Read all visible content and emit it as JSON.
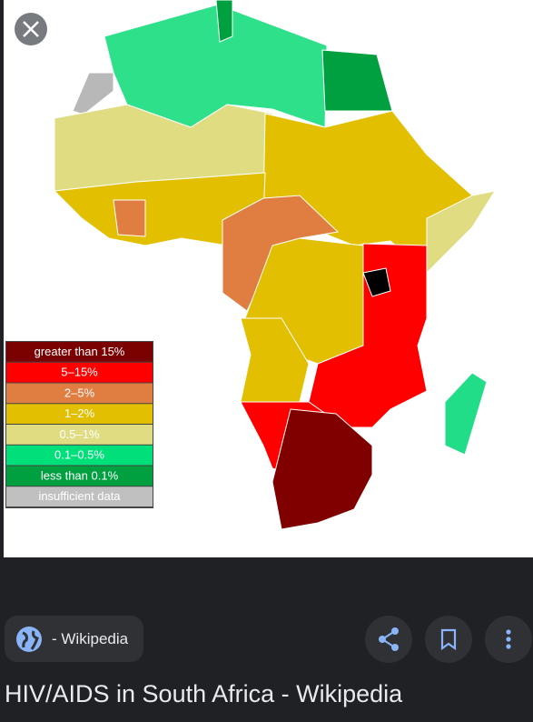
{
  "image": {
    "legend": [
      {
        "label": "greater than 15%",
        "color": "#7b0000"
      },
      {
        "label": "5–15%",
        "color": "#ff0000"
      },
      {
        "label": "2–5%",
        "color": "#e07d40"
      },
      {
        "label": "1–2%",
        "color": "#e2bf00"
      },
      {
        "label": "0.5–1%",
        "color": "#e0dc82"
      },
      {
        "label": "0.1–0.5%",
        "color": "#00e07a"
      },
      {
        "label": "less than 0.1%",
        "color": "#00a040"
      },
      {
        "label": "insufficient data",
        "color": "#c0c0c0"
      }
    ]
  },
  "source": "- Wikipedia",
  "title": "HIV/AIDS in South Africa - Wikipedia"
}
